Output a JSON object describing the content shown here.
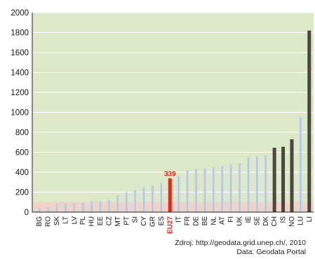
{
  "chart_data": {
    "type": "bar",
    "title": "",
    "xlabel": "",
    "ylabel": "",
    "ylim": [
      0,
      2000
    ],
    "yticks": [
      0,
      200,
      400,
      600,
      800,
      1000,
      1200,
      1400,
      1600,
      1800,
      2000
    ],
    "grid": true,
    "categories": [
      "BG",
      "RO",
      "SK",
      "LT",
      "LV",
      "PL",
      "HU",
      "EE",
      "CZ",
      "MT",
      "PT",
      "SI",
      "CY",
      "GR",
      "ES",
      "EU27",
      "IT",
      "FR",
      "DE",
      "BE",
      "NL",
      "AT",
      "FI",
      "UK",
      "IE",
      "SE",
      "DK",
      "CH",
      "IS",
      "NO",
      "LU",
      "LI"
    ],
    "values": [
      40,
      50,
      80,
      85,
      90,
      95,
      110,
      115,
      120,
      170,
      200,
      220,
      250,
      265,
      290,
      339,
      360,
      420,
      430,
      440,
      450,
      460,
      480,
      490,
      550,
      560,
      570,
      645,
      655,
      730,
      950,
      1820
    ],
    "highlight": {
      "category": "EU27",
      "label": "339",
      "color": "#e8261e"
    },
    "dark_categories": [
      "CH",
      "IS",
      "NO",
      "LI"
    ],
    "colors": {
      "plot_background": "#dde8c8",
      "band": "#f3cfc6",
      "gridline": "#ffffff",
      "bar_light": "#a8bedc",
      "bar_dark": "#4a4640",
      "highlight": "#e8261e"
    }
  },
  "source": {
    "line1": "Zdroj: http://geodata.grid.unep.ch/, 2010",
    "line2": "Data: Geodata Portal"
  }
}
